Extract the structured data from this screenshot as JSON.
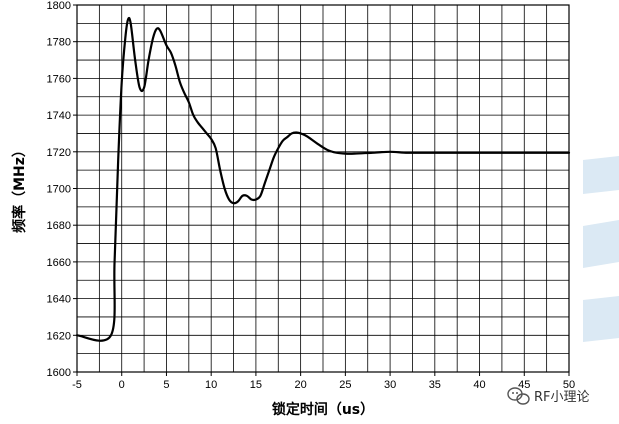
{
  "chart_data": {
    "type": "line",
    "title": "",
    "xlabel": "锁定时间（us）",
    "ylabel": "频率（MHz）",
    "xlim": [
      -5,
      50
    ],
    "ylim": [
      1600,
      1800
    ],
    "x_ticks": [
      -5,
      0,
      5,
      10,
      15,
      20,
      25,
      30,
      35,
      40,
      45,
      50
    ],
    "y_ticks": [
      1600,
      1620,
      1640,
      1660,
      1680,
      1700,
      1720,
      1740,
      1760,
      1780,
      1800
    ],
    "grid": true,
    "series": [
      {
        "x": [
          -5,
          -1.2,
          -0.8,
          -0.4,
          0,
          0.4,
          0.7,
          1.0,
          1.5,
          2.0,
          2.5,
          3.0,
          3.5,
          3.9,
          4.3,
          5.0,
          5.5,
          6.0,
          6.5,
          7.0,
          7.5,
          8.0,
          8.5,
          9.0,
          9.5,
          10.0,
          10.5,
          11.0,
          11.5,
          12.0,
          12.5,
          13.0,
          13.5,
          14.0,
          14.5,
          15.0,
          15.5,
          16.0,
          16.5,
          17.0,
          17.5,
          18.0,
          18.5,
          19.0,
          19.5,
          20.0,
          20.5,
          21.0,
          22.0,
          23.0,
          24.0,
          25.0,
          26.0,
          28.0,
          30.0,
          32.0,
          35.0,
          40.0,
          45.0,
          50.0
        ],
        "y": [
          1620,
          1620,
          1660,
          1715,
          1758,
          1782,
          1792,
          1790,
          1770,
          1755,
          1755,
          1770,
          1782,
          1787,
          1786,
          1778,
          1774,
          1767,
          1758,
          1752,
          1747,
          1740,
          1736,
          1733,
          1730,
          1727,
          1722,
          1710,
          1700,
          1694,
          1692,
          1693,
          1696,
          1696,
          1694,
          1694,
          1696,
          1703,
          1710,
          1717,
          1722,
          1726,
          1728,
          1730,
          1730.5,
          1730,
          1729,
          1727.5,
          1724,
          1721,
          1719.5,
          1719,
          1719,
          1719.5,
          1720,
          1719.5,
          1719.5,
          1719.5,
          1719.5,
          1719.5
        ]
      }
    ]
  },
  "watermark": {
    "text": "RF小理论",
    "icon": "wechat-icon"
  }
}
